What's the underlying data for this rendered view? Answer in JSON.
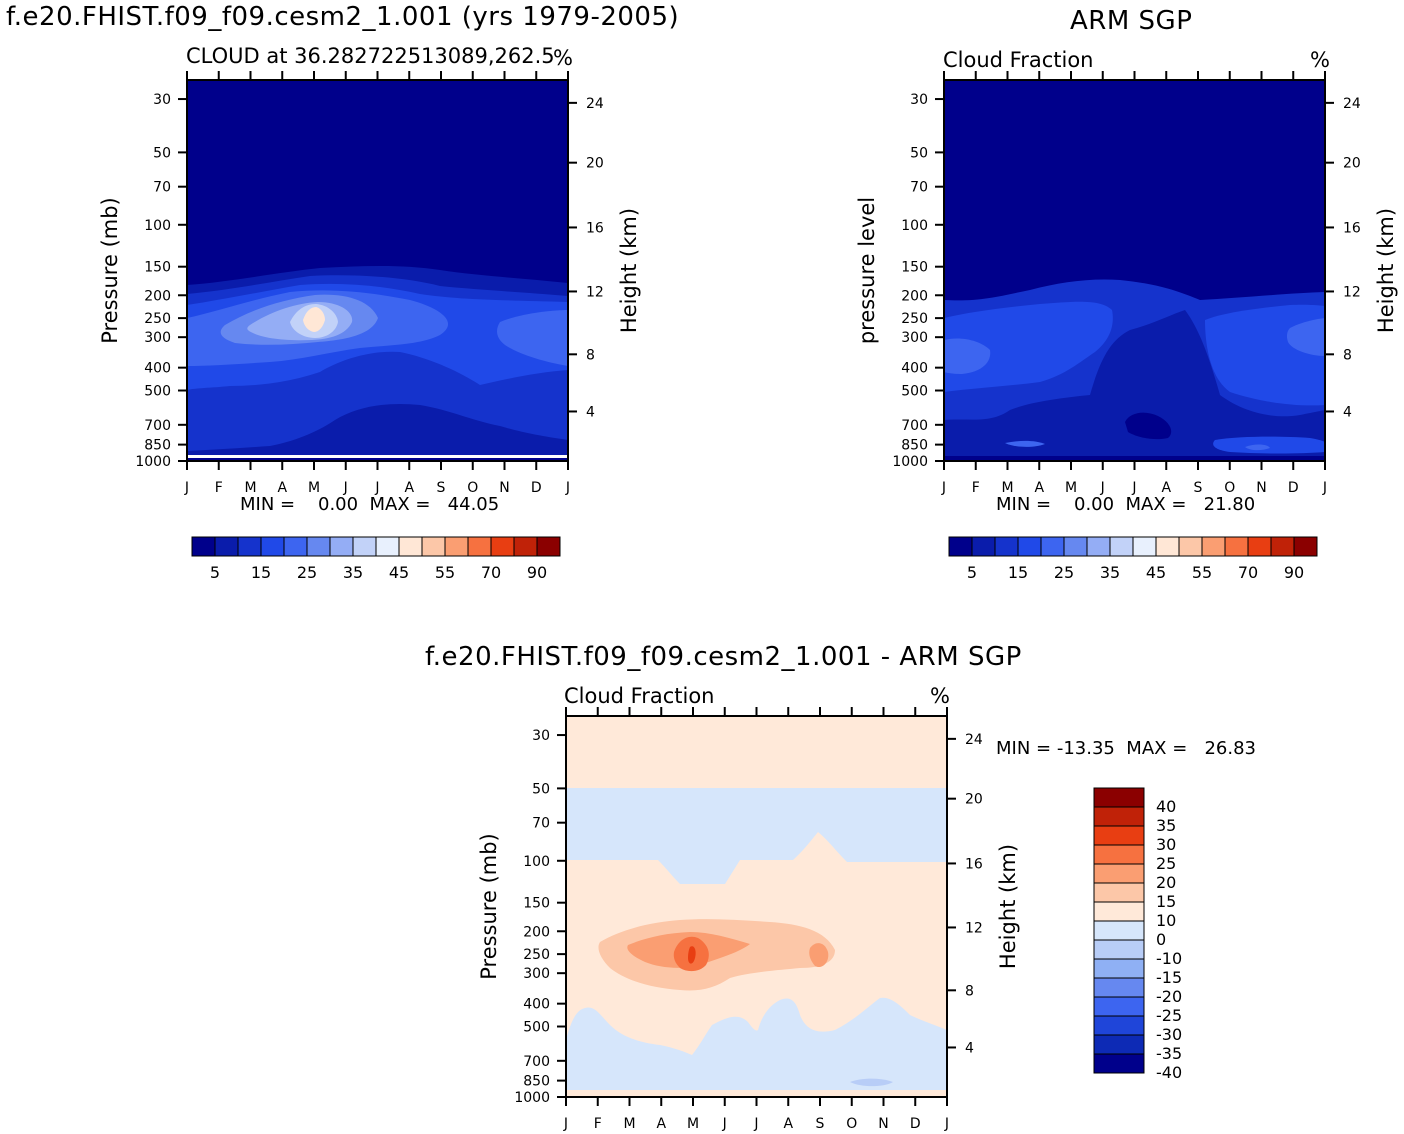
{
  "chart_data": [
    {
      "type": "heatmap",
      "panel": "model",
      "page_title": "f.e20.FHIST.f09_f09.cesm2_1.001 (yrs 1979-2005)",
      "title": "CLOUD at 36.282722513089,262.5",
      "units": "%",
      "xlabel": "",
      "ylabel": "Pressure (mb)",
      "ylabel_right": "Height (km)",
      "x_ticks": [
        "J",
        "F",
        "M",
        "A",
        "M",
        "J",
        "J",
        "A",
        "S",
        "O",
        "N",
        "D",
        "J"
      ],
      "y_ticks": [
        "30",
        "50",
        "70",
        "100",
        "150",
        "200",
        "250",
        "300",
        "400",
        "500",
        "700",
        "850",
        "1000"
      ],
      "y_ticks_right": [
        "24",
        "20",
        "16",
        "12",
        "8",
        "4"
      ],
      "stats_text": "MIN =    0.00  MAX =   44.05",
      "min": 0.0,
      "max": 44.05,
      "colorbar_labels": [
        "5",
        "15",
        "25",
        "35",
        "45",
        "55",
        "70",
        "90"
      ]
    },
    {
      "type": "heatmap",
      "panel": "obs",
      "page_title": "ARM SGP",
      "title": "Cloud Fraction",
      "units": "%",
      "xlabel": "",
      "ylabel": "pressure level",
      "ylabel_right": "Height (km)",
      "x_ticks": [
        "J",
        "F",
        "M",
        "A",
        "M",
        "J",
        "J",
        "A",
        "S",
        "O",
        "N",
        "D",
        "J"
      ],
      "y_ticks": [
        "30",
        "50",
        "70",
        "100",
        "150",
        "200",
        "250",
        "300",
        "400",
        "500",
        "700",
        "850",
        "1000"
      ],
      "y_ticks_right": [
        "24",
        "20",
        "16",
        "12",
        "8",
        "4"
      ],
      "stats_text": "MIN =    0.00  MAX =   21.80",
      "min": 0.0,
      "max": 21.8,
      "colorbar_labels": [
        "5",
        "15",
        "25",
        "35",
        "45",
        "55",
        "70",
        "90"
      ]
    },
    {
      "type": "heatmap",
      "panel": "diff",
      "page_title": "f.e20.FHIST.f09_f09.cesm2_1.001 - ARM SGP",
      "title": "Cloud Fraction",
      "units": "%",
      "xlabel": "",
      "ylabel": "Pressure (mb)",
      "ylabel_right": "Height (km)",
      "x_ticks": [
        "J",
        "F",
        "M",
        "A",
        "M",
        "J",
        "J",
        "A",
        "S",
        "O",
        "N",
        "D",
        "J"
      ],
      "y_ticks": [
        "30",
        "50",
        "70",
        "100",
        "150",
        "200",
        "250",
        "300",
        "400",
        "500",
        "700",
        "850",
        "1000"
      ],
      "y_ticks_right": [
        "24",
        "20",
        "16",
        "12",
        "8",
        "4"
      ],
      "stats_text": "MIN = -13.35  MAX =   26.83",
      "min": -13.35,
      "max": 26.83,
      "colorbar_labels": [
        "40",
        "35",
        "30",
        "25",
        "20",
        "15",
        "10",
        "0",
        "-10",
        "-15",
        "-20",
        "-25",
        "-30",
        "-35",
        "-40"
      ]
    }
  ],
  "colors": {
    "seq": [
      "#00008b",
      "#0a1cab",
      "#1533cc",
      "#2049e8",
      "#3d65f0",
      "#6688f0",
      "#94adf5",
      "#c2d2f8",
      "#e8f0fd",
      "#ffe7d6",
      "#fcc7a8",
      "#fa9e72",
      "#f67140",
      "#e83e12",
      "#c02208",
      "#8b0000"
    ],
    "div": [
      "#8b0000",
      "#c02208",
      "#e83e12",
      "#f67140",
      "#fa9e72",
      "#fcc7a8",
      "#ffe9d9",
      "#d6e6fb",
      "#b8cdf7",
      "#8fb0f4",
      "#6688f0",
      "#3d65f0",
      "#1f45d9",
      "#0d2ab5",
      "#00008b"
    ]
  }
}
